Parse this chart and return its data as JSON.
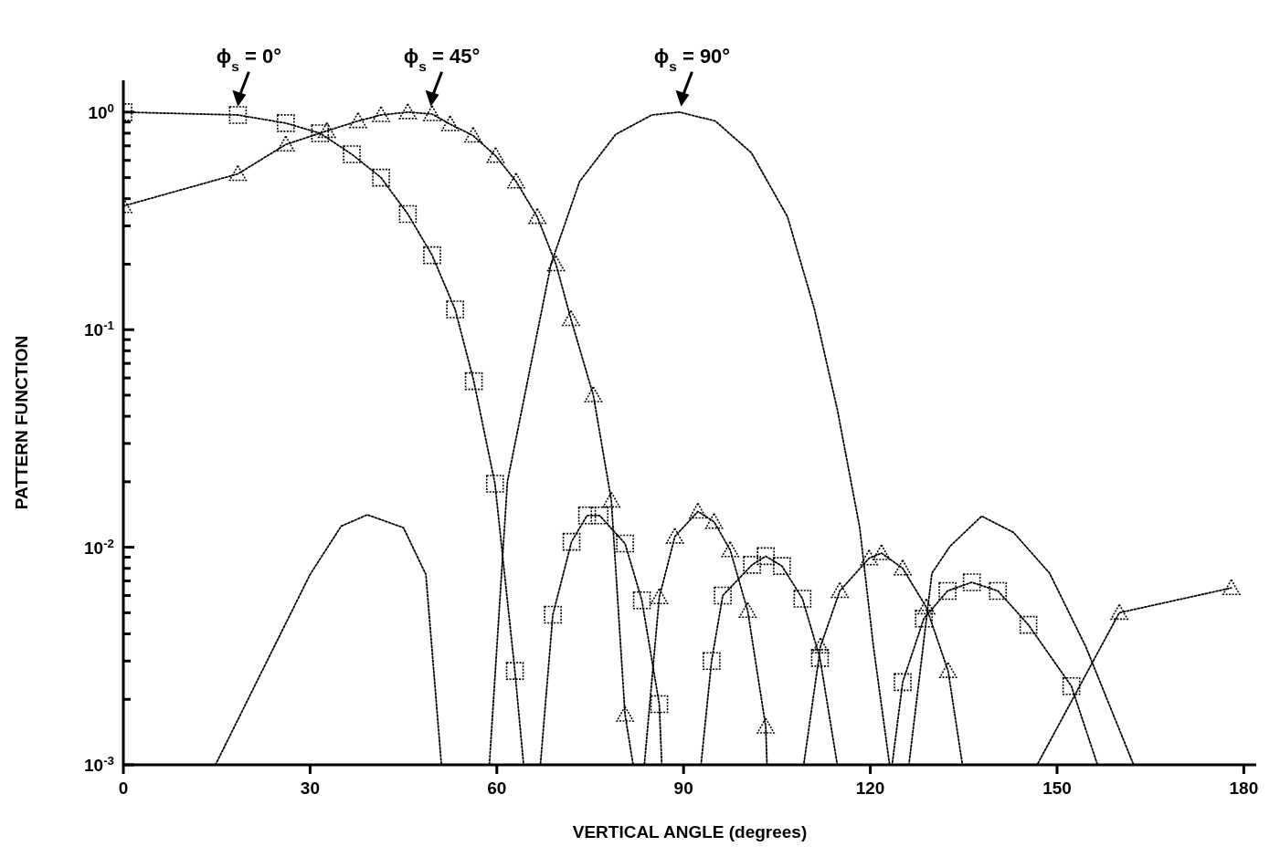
{
  "chart_data": {
    "type": "line",
    "xlabel": "VERTICAL ANGLE (degrees)",
    "ylabel": "PATTERN FUNCTION",
    "log": "y",
    "grid": false,
    "line_style": "dotted",
    "xlim": [
      0,
      182
    ],
    "ylim": [
      0.001,
      1.4
    ],
    "xticks": [
      0,
      30,
      60,
      90,
      120,
      150,
      180
    ],
    "yticks": [
      {
        "value": 0.001,
        "label": "10$^{-3}$"
      },
      {
        "value": 0.002,
        "label": null
      },
      {
        "value": 0.003,
        "label": null
      },
      {
        "value": 0.004,
        "label": null
      },
      {
        "value": 0.005,
        "label": null
      },
      {
        "value": 0.006,
        "label": null
      },
      {
        "value": 0.007,
        "label": null
      },
      {
        "value": 0.008,
        "label": null
      },
      {
        "value": 0.009,
        "label": null
      },
      {
        "value": 0.01,
        "label": "10$^{-2}$"
      },
      {
        "value": 0.02,
        "label": null
      },
      {
        "value": 0.03,
        "label": null
      },
      {
        "value": 0.04,
        "label": null
      },
      {
        "value": 0.05,
        "label": null
      },
      {
        "value": 0.06,
        "label": null
      },
      {
        "value": 0.07,
        "label": null
      },
      {
        "value": 0.08,
        "label": null
      },
      {
        "value": 0.09,
        "label": null
      },
      {
        "value": 0.1,
        "label": "10$^{-1}$"
      },
      {
        "value": 0.2,
        "label": null
      },
      {
        "value": 0.3,
        "label": null
      },
      {
        "value": 0.4,
        "label": null
      },
      {
        "value": 0.5,
        "label": null
      },
      {
        "value": 0.6,
        "label": null
      },
      {
        "value": 0.7,
        "label": null
      },
      {
        "value": 0.8,
        "label": null
      },
      {
        "value": 0.9,
        "label": null
      },
      {
        "value": 1,
        "label": "10$^{0}$"
      }
    ],
    "series": [
      {
        "color": "#000000",
        "marker": "square",
        "x": [
          0,
          18.4,
          26.1,
          31.6,
          36.7,
          41.4,
          45.7,
          49.6,
          53.3,
          56.3,
          59.7,
          62.9,
          64.3,
          67,
          69,
          72,
          74.5,
          76.5,
          80.6,
          83.3,
          86.1,
          86.5,
          92.8,
          94.5,
          96.3,
          101,
          103.2,
          105.8,
          109.1,
          111.9,
          114.7,
          123.5,
          125.2,
          128.6,
          132.4,
          136.3,
          140.5,
          145.4,
          152.3,
          156.5
        ],
        "values": [
          1.0,
          0.97,
          0.89,
          0.8,
          0.64,
          0.5,
          0.34,
          0.22,
          0.124,
          0.058,
          0.0196,
          0.0027,
          0.001,
          0.001,
          0.0049,
          0.0106,
          0.014,
          0.014,
          0.0104,
          0.0057,
          0.0019,
          0.001,
          0.001,
          0.003,
          0.006,
          0.0083,
          0.0091,
          0.0082,
          0.0058,
          0.0031,
          0.001,
          0.001,
          0.0024,
          0.0047,
          0.0063,
          0.0069,
          0.0063,
          0.0044,
          0.0023,
          0.001
        ]
      },
      {
        "color": "#000000",
        "marker": "triangle",
        "x": [
          0,
          18.4,
          26.1,
          32.7,
          37.7,
          41.4,
          45.7,
          49.6,
          52.5,
          56.2,
          59.8,
          63.1,
          66.5,
          69.5,
          71.9,
          75.5,
          78.4,
          80.6,
          81.9,
          83.7,
          86.1,
          88.6,
          92.3,
          94.9,
          97.5,
          100.3,
          103.2,
          103.4,
          109.3,
          112,
          115.1,
          119.8,
          121.8,
          125.2,
          129,
          132.5,
          134.8,
          146.8,
          160,
          178
        ],
        "values": [
          0.37,
          0.52,
          0.71,
          0.82,
          0.91,
          0.97,
          1.0,
          0.98,
          0.88,
          0.78,
          0.63,
          0.48,
          0.33,
          0.2,
          0.112,
          0.05,
          0.0164,
          0.0017,
          0.001,
          0.001,
          0.0059,
          0.0112,
          0.0146,
          0.0131,
          0.0097,
          0.0051,
          0.0015,
          0.001,
          0.001,
          0.0035,
          0.0063,
          0.0089,
          0.0094,
          0.008,
          0.0053,
          0.0027,
          0.001,
          0.001,
          0.005,
          0.0065
        ]
      },
      {
        "color": "#000000",
        "marker": "none",
        "x": [
          14.8,
          30,
          35,
          39.2,
          45,
          48.6,
          51.1,
          58.8,
          61.7,
          68.7,
          73.3,
          79.1,
          84.9,
          89.3,
          95.1,
          100.9,
          106.7,
          111,
          114.7,
          118.3,
          120.5,
          123.1,
          126.2,
          129.9,
          132.8,
          137.9,
          143,
          148.8,
          154.6,
          162.3
        ],
        "values": [
          0.001,
          0.0075,
          0.0125,
          0.0141,
          0.0123,
          0.0075,
          0.001,
          0.001,
          0.02,
          0.2,
          0.48,
          0.79,
          0.97,
          1.0,
          0.91,
          0.65,
          0.33,
          0.125,
          0.043,
          0.0123,
          0.0035,
          0.001,
          0.001,
          0.0076,
          0.0101,
          0.0139,
          0.0117,
          0.0076,
          0.0035,
          0.001
        ]
      }
    ],
    "annotations": [
      {
        "text": "ϕ$_{s}$ = 0°",
        "x": 18.4,
        "y": 1.0
      },
      {
        "text": "ϕ$_{s}$ = 45°",
        "x": 49.4,
        "y": 1.0
      },
      {
        "text": "ϕ$_{s}$ = 90°",
        "x": 89.6,
        "y": 1.0
      }
    ]
  }
}
